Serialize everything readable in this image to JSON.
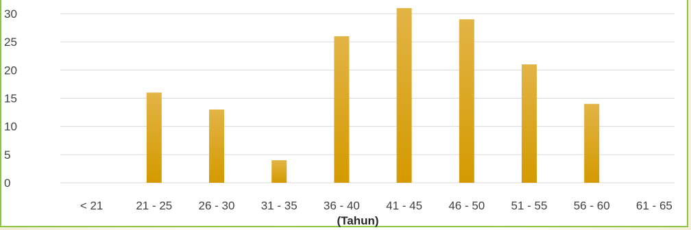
{
  "chart_data": {
    "type": "bar",
    "categories": [
      "< 21",
      "21 - 25",
      "26 - 30",
      "31 - 35",
      "36 - 40",
      "41 - 45",
      "46 - 50",
      "51 - 55",
      "56 - 60",
      "61 - 65"
    ],
    "values": [
      0,
      16,
      13,
      4,
      26,
      31,
      29,
      21,
      14,
      0
    ],
    "xlabel": "(Tahun)",
    "ylabel": "",
    "ylim": [
      0,
      30
    ],
    "yticks": [
      0,
      5,
      10,
      15,
      20,
      25,
      30
    ],
    "grid": true,
    "colors": {
      "bar_top": "#e2b445",
      "bar_bottom": "#d49a00",
      "grid": "#d9d9d9"
    }
  }
}
